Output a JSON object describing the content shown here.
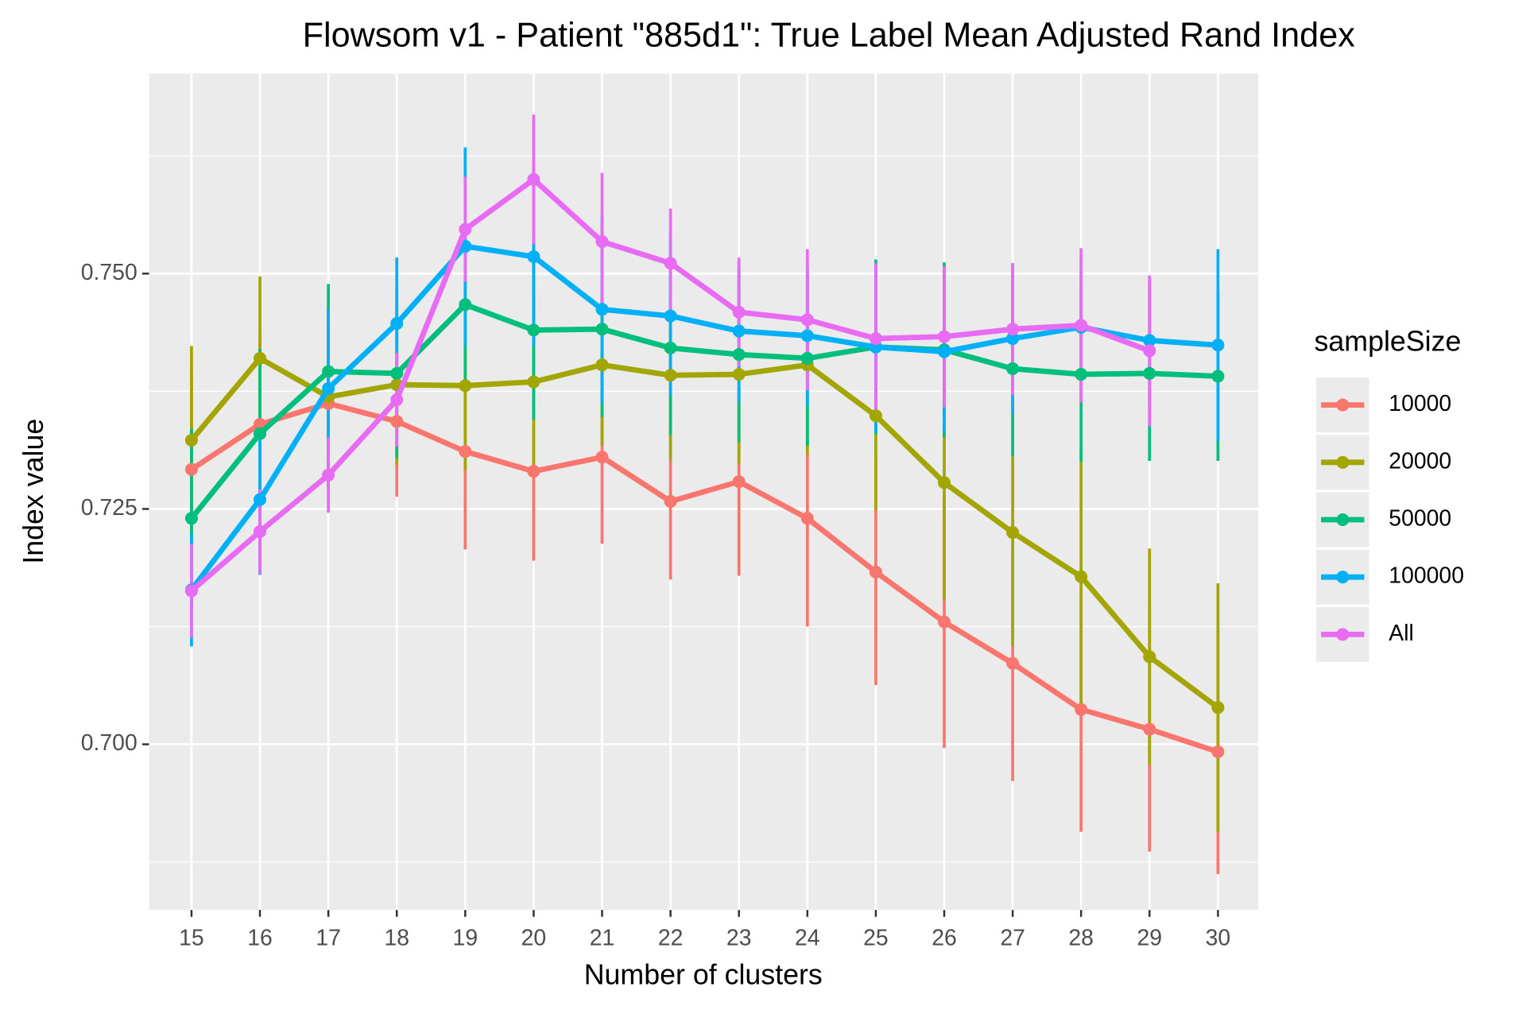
{
  "chart_data": {
    "type": "line",
    "title": "Flowsom v1 - Patient \"885d1\": True Label Mean Adjusted Rand Index",
    "x_label": "Number of clusters",
    "y_label": "Index value",
    "legend_title": "sampleSize",
    "legend": "right",
    "grid": true,
    "x": [
      15,
      16,
      17,
      18,
      19,
      20,
      21,
      22,
      23,
      24,
      25,
      26,
      27,
      28,
      29,
      30
    ],
    "xlim": [
      14.38,
      30.59
    ],
    "xticks": [
      15,
      16,
      17,
      18,
      19,
      20,
      21,
      22,
      23,
      24,
      25,
      26,
      27,
      28,
      29,
      30
    ],
    "ylim": [
      0.6824,
      0.77125
    ],
    "yticks": [
      {
        "value": 0.7,
        "label": "0.700"
      },
      {
        "value": 0.725,
        "label": "0.725"
      },
      {
        "value": 0.75,
        "label": "0.750"
      }
    ],
    "series": [
      {
        "name": "10000",
        "color": "#F8766D",
        "values": [
          0.7292,
          0.734,
          0.7362,
          0.7343,
          0.7311,
          0.729,
          0.7305,
          0.7258,
          0.7279,
          0.724,
          0.7183,
          0.713,
          0.7086,
          0.7037,
          0.7016,
          0.6992
        ],
        "errors": [
          0.0103,
          0.0095,
          0.009,
          0.008,
          0.0104,
          0.0095,
          0.0092,
          0.0083,
          0.01,
          0.0115,
          0.012,
          0.0134,
          0.0125,
          0.013,
          0.013,
          0.013
        ]
      },
      {
        "name": "20000",
        "color": "#A3A500",
        "values": [
          0.7323,
          0.741,
          0.7369,
          0.7382,
          0.7381,
          0.7385,
          0.7403,
          0.7392,
          0.7393,
          0.7403,
          0.7349,
          0.7278,
          0.7225,
          0.7178,
          0.7093,
          0.7039
        ],
        "errors": [
          0.01,
          0.0087,
          0.0095,
          0.0085,
          0.009,
          0.0095,
          0.0085,
          0.009,
          0.0095,
          0.0095,
          0.01,
          0.0125,
          0.012,
          0.014,
          0.0115,
          0.0132
        ]
      },
      {
        "name": "50000",
        "color": "#00BF7D",
        "values": [
          0.724,
          0.733,
          0.7396,
          0.7394,
          0.7467,
          0.744,
          0.7441,
          0.7421,
          0.7414,
          0.741,
          0.7422,
          0.7419,
          0.7399,
          0.7393,
          0.7394,
          0.7391
        ],
        "errors": [
          0.0095,
          0.009,
          0.0093,
          0.009,
          0.009,
          0.0095,
          0.0093,
          0.0093,
          0.0093,
          0.0093,
          0.0093,
          0.0093,
          0.0093,
          0.0093,
          0.0093,
          0.009
        ]
      },
      {
        "name": "100000",
        "color": "#00B0F6",
        "values": [
          0.7164,
          0.726,
          0.7378,
          0.7447,
          0.7529,
          0.7518,
          0.7462,
          0.7455,
          0.7439,
          0.7434,
          0.7422,
          0.7417,
          0.7431,
          0.7443,
          0.7429,
          0.7424
        ],
        "errors": [
          0.006,
          0.008,
          0.0085,
          0.007,
          0.0105,
          0.0095,
          0.01,
          0.0085,
          0.0075,
          0.0075,
          0.009,
          0.0085,
          0.008,
          0.0075,
          0.0067,
          0.0102
        ]
      },
      {
        "name": "All",
        "color": "#E76BF3",
        "values": [
          0.7163,
          0.7226,
          0.7286,
          0.7366,
          0.7547,
          0.76,
          0.7534,
          0.7511,
          0.7459,
          0.7451,
          0.7431,
          0.7433,
          0.7441,
          0.7445,
          0.7418,
          null
        ],
        "errors": [
          0.005,
          0.0045,
          0.004,
          0.005,
          0.0056,
          0.0069,
          0.0073,
          0.0058,
          0.0058,
          0.0075,
          0.008,
          0.0075,
          0.007,
          0.0082,
          0.008,
          null
        ]
      }
    ]
  }
}
